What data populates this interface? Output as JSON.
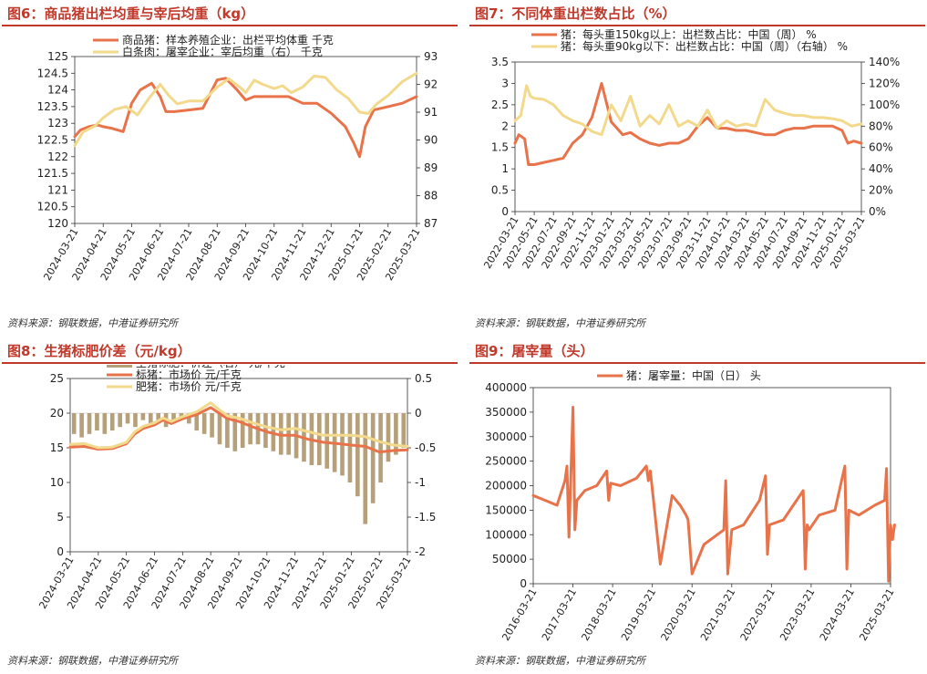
{
  "source": "资料来源：钢联数据，中港证券研究所",
  "chart_data": [
    {
      "id": "fig6",
      "type": "line",
      "title": "图6：商品猪出栏均重与宰后均重（kg）",
      "x_ticks": [
        "2024-03-21",
        "2024-04-21",
        "2024-05-21",
        "2024-06-21",
        "2024-07-21",
        "2024-08-21",
        "2024-09-21",
        "2024-10-21",
        "2024-11-21",
        "2024-12-21",
        "2025-01-21",
        "2025-02-21",
        "2025-03-21"
      ],
      "ylim_left": [
        120,
        125
      ],
      "yticks_left": [
        "120",
        "120.5",
        "121",
        "121.5",
        "122",
        "122.5",
        "123",
        "123.5",
        "124",
        "124.5",
        "125"
      ],
      "ylim_right": [
        87,
        93
      ],
      "yticks_right": [
        "87",
        "88",
        "89",
        "90",
        "91",
        "92",
        "93"
      ],
      "legend": "top-left",
      "series": [
        {
          "name": "商品猪：样本养殖企业：出栏平均体重 千克",
          "color": "#e8734a",
          "axis": "left",
          "x": [
            0,
            0.2,
            0.5,
            0.8,
            1.0,
            1.3,
            1.7,
            2.0,
            2.3,
            2.7,
            3.0,
            3.2,
            3.5,
            4.0,
            4.5,
            5.0,
            5.3,
            5.7,
            6.0,
            6.3,
            6.6,
            7.0,
            7.5,
            8.0,
            8.5,
            9.0,
            9.5,
            9.8,
            10.0,
            10.2,
            10.5,
            11.0,
            11.5,
            12.0
          ],
          "y": [
            122.6,
            122.8,
            122.9,
            122.95,
            122.9,
            122.85,
            122.75,
            123.6,
            124.0,
            124.2,
            123.8,
            123.35,
            123.35,
            123.4,
            123.45,
            124.3,
            124.35,
            124.0,
            123.7,
            123.8,
            123.8,
            123.8,
            123.8,
            123.6,
            123.6,
            123.3,
            122.9,
            122.4,
            122.0,
            122.9,
            123.4,
            123.5,
            123.6,
            123.8
          ]
        },
        {
          "name": "白条肉：屠宰企业：宰后均重（右） 千克",
          "color": "#f2d98c",
          "axis": "right",
          "x": [
            0,
            0.3,
            0.7,
            1.0,
            1.4,
            1.8,
            2.2,
            2.6,
            3.0,
            3.3,
            3.6,
            4.0,
            4.5,
            5.0,
            5.4,
            5.8,
            6.0,
            6.3,
            6.6,
            7.0,
            7.3,
            7.6,
            8.0,
            8.4,
            8.8,
            9.2,
            9.6,
            10.0,
            10.3,
            10.6,
            11.0,
            11.5,
            12.0
          ],
          "y": [
            89.8,
            90.3,
            90.5,
            90.8,
            91.1,
            91.2,
            90.9,
            91.5,
            92.0,
            91.6,
            91.3,
            91.4,
            91.4,
            91.9,
            92.2,
            91.9,
            91.7,
            92.15,
            92.0,
            91.85,
            91.95,
            91.7,
            91.9,
            92.3,
            92.25,
            91.8,
            91.5,
            91.0,
            90.95,
            91.3,
            91.6,
            92.1,
            92.4
          ]
        }
      ]
    },
    {
      "id": "fig7",
      "type": "line",
      "title": "图7：不同体重出栏数占比（%）",
      "x_ticks": [
        "2022-03-21",
        "2022-05-21",
        "2022-07-21",
        "2022-09-21",
        "2022-11-21",
        "2023-01-21",
        "2023-03-21",
        "2023-05-21",
        "2023-07-21",
        "2023-09-21",
        "2023-11-21",
        "2024-01-21",
        "2024-03-21",
        "2024-05-21",
        "2024-07-21",
        "2024-09-21",
        "2024-11-21",
        "2025-01-21",
        "2025-03-21"
      ],
      "ylim_left": [
        0,
        3.5
      ],
      "yticks_left": [
        "0",
        "0.5",
        "1",
        "1.5",
        "2",
        "2.5",
        "3",
        "3.5"
      ],
      "ylim_right": [
        0,
        140
      ],
      "yticks_right": [
        "0%",
        "20%",
        "40%",
        "60%",
        "80%",
        "100%",
        "120%",
        "140%"
      ],
      "legend": "top-left",
      "series": [
        {
          "name": "猪：每头重150kg以上：出栏数占比：中国（周） %",
          "color": "#e8734a",
          "axis": "left",
          "x": [
            0,
            0.2,
            0.5,
            0.7,
            1.0,
            1.5,
            2.0,
            2.5,
            3.0,
            3.5,
            4.0,
            4.5,
            5.0,
            5.3,
            5.6,
            6.0,
            6.5,
            7.0,
            7.5,
            8.0,
            8.5,
            9.0,
            9.5,
            10.0,
            10.5,
            11.0,
            11.5,
            12.0,
            12.5,
            13.0,
            13.5,
            14.0,
            14.5,
            15.0,
            15.5,
            16.0,
            16.5,
            17.0,
            17.3,
            17.6,
            18.0
          ],
          "y": [
            1.6,
            1.8,
            1.7,
            1.1,
            1.1,
            1.15,
            1.2,
            1.25,
            1.6,
            1.8,
            2.2,
            3.0,
            2.1,
            1.95,
            1.8,
            1.85,
            1.7,
            1.6,
            1.55,
            1.6,
            1.6,
            1.7,
            2.0,
            2.2,
            1.95,
            1.95,
            1.9,
            1.9,
            1.85,
            1.8,
            1.8,
            1.9,
            1.95,
            1.95,
            2.0,
            2.0,
            2.0,
            1.9,
            1.6,
            1.65,
            1.6
          ]
        },
        {
          "name": "猪：每头重90kg以下：出栏数占比：中国（周）（右轴） %",
          "color": "#f2d98c",
          "axis": "right",
          "x": [
            0,
            0.3,
            0.6,
            0.8,
            1.0,
            1.5,
            2.0,
            2.5,
            3.0,
            3.5,
            4.0,
            4.5,
            5.0,
            5.5,
            6.0,
            6.5,
            7.0,
            7.5,
            8.0,
            8.5,
            9.0,
            9.5,
            10.0,
            10.5,
            11.0,
            11.5,
            12.0,
            12.5,
            13.0,
            13.5,
            14.0,
            14.5,
            15.0,
            15.5,
            16.0,
            16.5,
            17.0,
            17.5,
            18.0
          ],
          "y": [
            85,
            90,
            118,
            108,
            106,
            105,
            100,
            90,
            85,
            82,
            75,
            72,
            100,
            85,
            108,
            80,
            90,
            82,
            100,
            80,
            85,
            80,
            95,
            78,
            85,
            80,
            82,
            80,
            105,
            95,
            92,
            90,
            90,
            88,
            88,
            87,
            85,
            80,
            82
          ]
        }
      ]
    },
    {
      "id": "fig8",
      "type": "bar+line",
      "title": "图8：生猪标肥价差（元/kg）",
      "x_ticks": [
        "2024-03-21",
        "2024-04-21",
        "2024-05-21",
        "2024-06-21",
        "2024-07-21",
        "2024-08-21",
        "2024-09-21",
        "2024-10-21",
        "2024-11-21",
        "2024-12-21",
        "2025-01-21",
        "2025-02-21",
        "2025-03-21"
      ],
      "ylim_left": [
        0,
        25
      ],
      "yticks_left": [
        "0",
        "5",
        "10",
        "15",
        "20",
        "25"
      ],
      "ylim_right": [
        -2,
        0.5
      ],
      "yticks_right": [
        "-2",
        "-1.5",
        "-1",
        "-0.5",
        "0",
        "0.5"
      ],
      "legend": "top",
      "series": [
        {
          "name": "生猪标肥：价差（右） 元/千克",
          "color": "#b5a07a",
          "axis": "right",
          "kind": "bar",
          "values": [
            -0.3,
            -0.35,
            -0.3,
            -0.25,
            -0.3,
            -0.25,
            -0.2,
            -0.15,
            -0.2,
            -0.1,
            -0.15,
            -0.1,
            -0.2,
            -0.15,
            -0.1,
            -0.15,
            -0.25,
            -0.3,
            -0.35,
            -0.45,
            -0.5,
            -0.55,
            -0.5,
            -0.45,
            -0.45,
            -0.5,
            -0.55,
            -0.6,
            -0.6,
            -0.65,
            -0.7,
            -0.75,
            -0.75,
            -0.8,
            -0.85,
            -0.9,
            -1.0,
            -1.2,
            -1.6,
            -1.3,
            -1.0,
            -0.7,
            -0.6,
            -0.5
          ]
        },
        {
          "name": "标猪：市场价 元/千克",
          "color": "#e8734a",
          "axis": "left",
          "kind": "line",
          "x": [
            0,
            0.5,
            1.0,
            1.5,
            2.0,
            2.3,
            2.6,
            3.0,
            3.3,
            3.6,
            4.0,
            4.5,
            5.0,
            5.3,
            5.6,
            6.0,
            6.5,
            7.0,
            7.5,
            8.0,
            8.5,
            9.0,
            9.5,
            10.0,
            10.5,
            11.0,
            11.5,
            12.0
          ],
          "y": [
            15.1,
            15.2,
            14.8,
            14.9,
            15.6,
            17.0,
            17.8,
            18.3,
            19.0,
            18.5,
            19.2,
            19.8,
            20.8,
            20.0,
            19.2,
            18.8,
            18.0,
            17.3,
            16.8,
            16.8,
            16.2,
            15.8,
            15.6,
            15.4,
            15.2,
            14.4,
            14.6,
            14.7
          ]
        },
        {
          "name": "肥猪：市场价 元/千克",
          "color": "#f2d98c",
          "axis": "left",
          "kind": "line",
          "x": [
            0,
            0.5,
            1.0,
            1.5,
            2.0,
            2.3,
            2.6,
            3.0,
            3.3,
            3.6,
            4.0,
            4.5,
            5.0,
            5.3,
            5.6,
            6.0,
            6.5,
            7.0,
            7.5,
            8.0,
            8.5,
            9.0,
            9.5,
            10.0,
            10.5,
            11.0,
            11.5,
            12.0
          ],
          "y": [
            15.5,
            15.6,
            15.0,
            15.1,
            15.8,
            17.3,
            18.1,
            18.6,
            19.3,
            18.8,
            19.5,
            20.2,
            21.5,
            20.5,
            19.6,
            19.3,
            18.6,
            18.0,
            17.6,
            17.8,
            17.3,
            16.8,
            16.8,
            16.8,
            16.6,
            15.9,
            15.4,
            15.2
          ]
        }
      ]
    },
    {
      "id": "fig9",
      "type": "line",
      "title": "图9：屠宰量（头）",
      "x_ticks": [
        "2016-03-21",
        "2017-03-21",
        "2018-03-21",
        "2019-03-21",
        "2020-03-21",
        "2021-03-21",
        "2022-03-21",
        "2023-03-21",
        "2024-03-21",
        "2025-03-21"
      ],
      "ylim_left": [
        0,
        400000
      ],
      "yticks_left": [
        "0",
        "50000",
        "100000",
        "150000",
        "200000",
        "250000",
        "300000",
        "350000",
        "400000"
      ],
      "legend": "top",
      "series": [
        {
          "name": "猪：屠宰量：中国（日） 头",
          "color": "#e8734a",
          "axis": "left",
          "x": [
            0,
            0.3,
            0.6,
            0.8,
            0.85,
            0.9,
            1.0,
            1.05,
            1.1,
            1.3,
            1.6,
            1.85,
            1.9,
            1.95,
            2.2,
            2.6,
            2.85,
            2.9,
            2.95,
            3.2,
            3.5,
            3.7,
            3.85,
            3.9,
            4.0,
            4.3,
            4.8,
            4.85,
            4.9,
            5.0,
            5.3,
            5.7,
            5.85,
            5.9,
            5.95,
            6.3,
            6.8,
            6.85,
            6.9,
            6.95,
            7.2,
            7.6,
            7.85,
            7.9,
            7.95,
            8.2,
            8.6,
            8.85,
            8.9,
            8.95,
            9.0,
            9.05,
            9.1
          ],
          "y": [
            180000,
            170000,
            160000,
            210000,
            240000,
            95000,
            360000,
            110000,
            170000,
            190000,
            200000,
            230000,
            170000,
            205000,
            200000,
            215000,
            240000,
            210000,
            230000,
            40000,
            180000,
            160000,
            140000,
            130000,
            20000,
            80000,
            110000,
            210000,
            20000,
            110000,
            120000,
            170000,
            220000,
            60000,
            120000,
            130000,
            190000,
            30000,
            120000,
            110000,
            140000,
            150000,
            240000,
            30000,
            150000,
            140000,
            160000,
            170000,
            235000,
            5000,
            120000,
            90000,
            120000
          ]
        }
      ]
    }
  ]
}
